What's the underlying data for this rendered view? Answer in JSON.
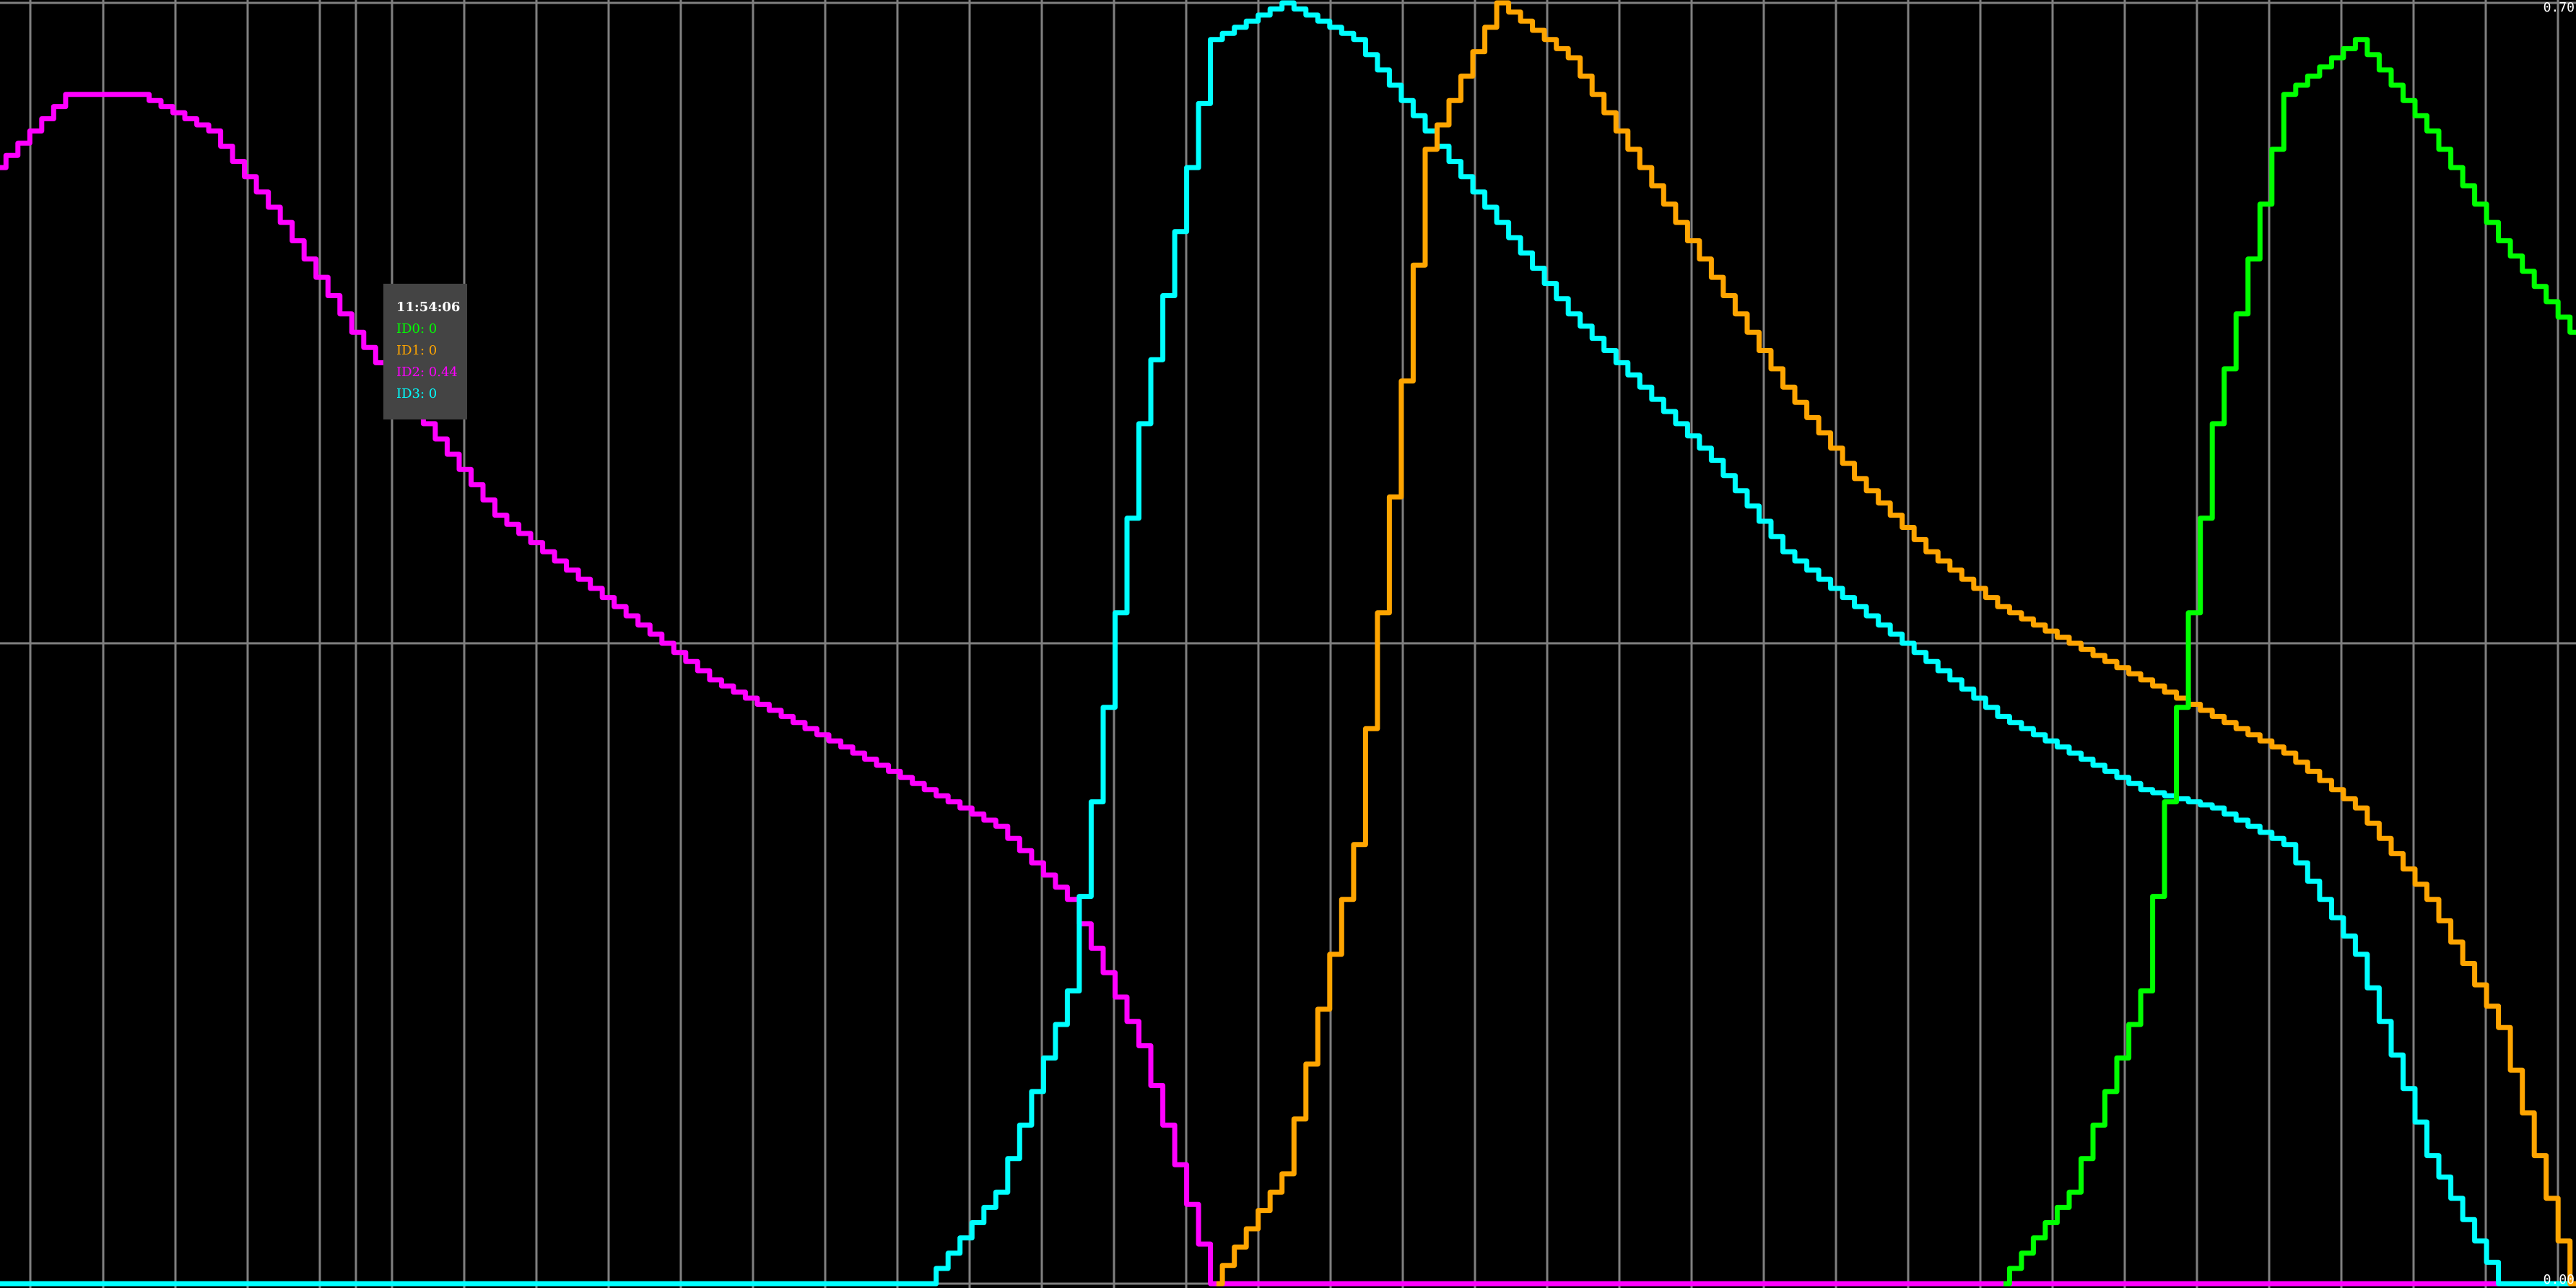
{
  "chart_data": {
    "type": "line",
    "title": "",
    "xlabel": "",
    "ylabel": "",
    "ylim": [
      0,
      0.7
    ],
    "y_tick_labels": {
      "max": "0.70",
      "min": "0.00"
    },
    "grid": true,
    "background": "#000000",
    "grid_color": "#808080",
    "x": [
      0,
      1,
      2,
      3,
      4,
      5,
      6,
      7,
      8,
      9,
      10,
      11,
      12,
      13,
      14,
      15,
      16,
      17,
      18,
      19,
      20,
      21,
      22,
      23,
      24,
      25,
      26,
      27,
      28,
      29,
      30,
      31,
      32,
      33,
      34,
      35,
      36
    ],
    "series": [
      {
        "name": "ID2",
        "color": "#ff00ff",
        "values": [
          0.61,
          0.65,
          0.65,
          0.63,
          0.58,
          0.52,
          0.47,
          0.42,
          0.39,
          0.36,
          0.33,
          0.31,
          0.29,
          0.27,
          0.25,
          0.21,
          0.13,
          0,
          0,
          0,
          0,
          0,
          0,
          0,
          0,
          0,
          0,
          0,
          0,
          0,
          0,
          0,
          0,
          0,
          0,
          0,
          0
        ]
      },
      {
        "name": "ID3",
        "color": "#00ffff",
        "values": [
          0,
          0,
          0,
          0,
          0,
          0,
          0,
          0,
          0,
          0,
          0,
          0,
          0,
          0,
          0.05,
          0.16,
          0.47,
          0.68,
          0.7,
          0.68,
          0.63,
          0.58,
          0.53,
          0.49,
          0.45,
          0.4,
          0.37,
          0.34,
          0.31,
          0.29,
          0.27,
          0.26,
          0.24,
          0.18,
          0.07,
          0,
          0
        ]
      }
    ],
    "series_extra": [
      {
        "name": "ID1",
        "color": "#ffa500",
        "x": [
          17,
          18,
          19,
          20,
          21,
          22,
          23,
          24,
          25,
          26,
          27,
          28,
          29,
          30,
          31,
          32,
          33,
          34,
          35,
          36
        ],
        "values": [
          0,
          0.06,
          0.24,
          0.62,
          0.7,
          0.67,
          0.61,
          0.55,
          0.49,
          0.44,
          0.4,
          0.37,
          0.35,
          0.33,
          0.31,
          0.29,
          0.26,
          0.21,
          0.14,
          0
        ]
      },
      {
        "name": "ID0",
        "color": "#00ff00",
        "x": [
          28,
          29,
          30,
          31,
          32,
          33,
          34,
          35,
          36
        ],
        "values": [
          0,
          0.05,
          0.16,
          0.47,
          0.65,
          0.68,
          0.63,
          0.57,
          0.52
        ]
      }
    ]
  },
  "tooltip": {
    "time": "11:54:06",
    "rows": [
      {
        "text": "ID0: 0",
        "color": "#00ff00"
      },
      {
        "text": "ID1: 0",
        "color": "#ffa500"
      },
      {
        "text": "ID2: 0.44",
        "color": "#ff00ff"
      },
      {
        "text": "ID3: 0",
        "color": "#00ffff"
      }
    ]
  }
}
